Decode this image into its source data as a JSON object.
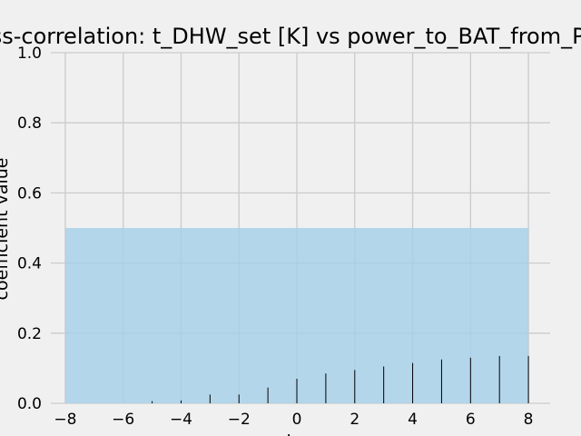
{
  "chart_data": {
    "type": "bar",
    "title": "Cross-correlation: t_DHW_set [K] vs power_to_BAT_from_PV [W]",
    "xlabel": "lag",
    "ylabel": "coefficient value",
    "xlim": [
      -8.5,
      8.75
    ],
    "ylim": [
      0.0,
      1.0
    ],
    "xticks": [
      "−8",
      "−6",
      "−4",
      "−2",
      "0",
      "2",
      "4",
      "6",
      "8"
    ],
    "yticks": [
      "0.0",
      "0.2",
      "0.4",
      "0.6",
      "0.8",
      "1.0"
    ],
    "grid": true,
    "confidence_band": {
      "x_range": [
        -8,
        8
      ],
      "upper": 0.5,
      "lower": 0.0,
      "color": "#a6cfe8"
    },
    "lags": [
      -8,
      -7,
      -6,
      -5,
      -4,
      -3,
      -2,
      -1,
      0,
      1,
      2,
      3,
      4,
      5,
      6,
      7,
      8
    ],
    "values": [
      0.0,
      0.0,
      0.0,
      0.006,
      0.008,
      0.025,
      0.025,
      0.045,
      0.07,
      0.085,
      0.095,
      0.105,
      0.115,
      0.125,
      0.13,
      0.135,
      0.135
    ],
    "colors": {
      "background": "#f0f0f0",
      "grid": "#cbcbcb",
      "bar": "#000000"
    }
  }
}
